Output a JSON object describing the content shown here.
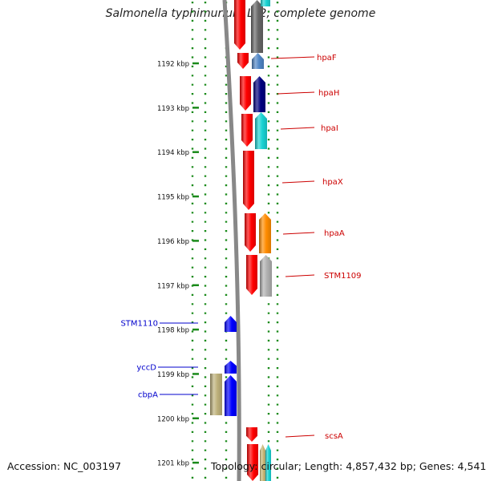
{
  "title": "Salmonella typhimurium LT2, complete genome",
  "footer": {
    "accession": "Accession: NC_003197",
    "stats": "Topology: circular; Length: 4,857,432 bp; Genes: 4,541"
  },
  "colors": {
    "ruler": "#1a8a1a",
    "backbone": "#888888",
    "cds": "#ff0000",
    "forward_gene": "#0000ff",
    "forward_label": "#0000cc",
    "reverse_label": "#cc0000"
  },
  "ruler_ticks": [
    "1192 kbp",
    "1193 kbp",
    "1194 kbp",
    "1195 kbp",
    "1196 kbp",
    "1197 kbp",
    "1198 kbp",
    "1199 kbp",
    "1200 kbp",
    "1201 kbp"
  ],
  "reverse_genes": [
    {
      "label": "hpaF",
      "color": "#4f86c6"
    },
    {
      "label": "hpaH",
      "color": "#000080"
    },
    {
      "label": "hpaI",
      "color": "#19d3d3"
    },
    {
      "label": "hpaX",
      "color": ""
    },
    {
      "label": "hpaA",
      "color": "#ff8c00"
    },
    {
      "label": "STM1109",
      "color": "#b0b0b0"
    },
    {
      "label": "scsA",
      "color": ""
    }
  ],
  "forward_genes": [
    {
      "label": "STM1110"
    },
    {
      "label": "yccD"
    },
    {
      "label": "cbpA"
    }
  ]
}
